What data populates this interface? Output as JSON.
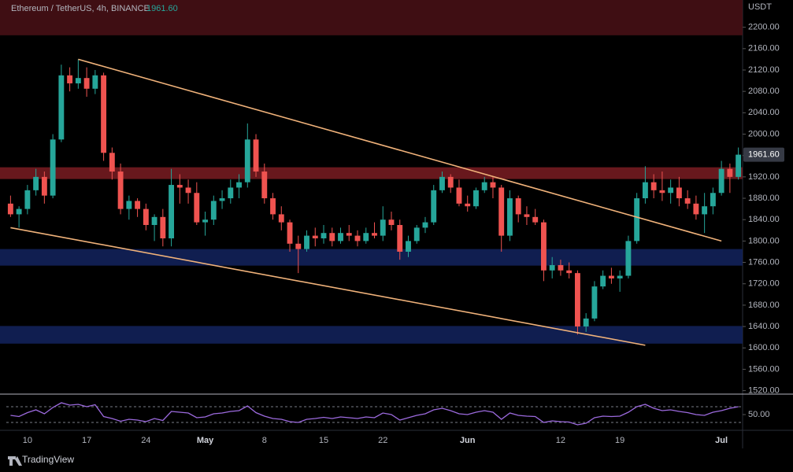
{
  "chart_data": {
    "type": "candlestick",
    "header": "Ethereum / TetherUS, 4h, BINANCE",
    "last_price_label": "1961.60",
    "currency": "USDT",
    "brand": "TradingView",
    "categories": [
      null,
      null,
      "10",
      null,
      null,
      null,
      null,
      null,
      null,
      "17",
      null,
      null,
      null,
      null,
      null,
      null,
      "24",
      null,
      null,
      null,
      null,
      null,
      null,
      "May",
      null,
      null,
      null,
      null,
      null,
      null,
      "8",
      null,
      null,
      null,
      null,
      null,
      null,
      "15",
      null,
      null,
      null,
      null,
      null,
      null,
      "22",
      null,
      null,
      null,
      null,
      null,
      null,
      null,
      null,
      null,
      "Jun",
      null,
      null,
      null,
      null,
      null,
      null,
      null,
      null,
      null,
      null,
      "12",
      null,
      null,
      null,
      null,
      null,
      null,
      "19",
      null,
      null,
      null,
      null,
      null,
      null,
      null,
      null,
      null,
      null,
      null,
      "Jul",
      null,
      null
    ],
    "candles": [
      [
        1870,
        1885,
        1845,
        1850
      ],
      [
        1850,
        1865,
        1825,
        1860
      ],
      [
        1860,
        1905,
        1850,
        1895
      ],
      [
        1895,
        1935,
        1885,
        1920
      ],
      [
        1920,
        1930,
        1870,
        1885
      ],
      [
        1885,
        2000,
        1880,
        1990
      ],
      [
        1990,
        2130,
        1985,
        2110
      ],
      [
        2110,
        2125,
        2080,
        2095
      ],
      [
        2095,
        2140,
        2085,
        2105
      ],
      [
        2105,
        2125,
        2070,
        2085
      ],
      [
        2085,
        2120,
        2075,
        2110
      ],
      [
        2110,
        2115,
        1950,
        1965
      ],
      [
        1965,
        1975,
        1915,
        1930
      ],
      [
        1930,
        1945,
        1850,
        1860
      ],
      [
        1860,
        1885,
        1840,
        1875
      ],
      [
        1875,
        1880,
        1845,
        1860
      ],
      [
        1860,
        1870,
        1820,
        1830
      ],
      [
        1830,
        1850,
        1800,
        1845
      ],
      [
        1845,
        1860,
        1790,
        1805
      ],
      [
        1805,
        1935,
        1790,
        1905
      ],
      [
        1905,
        1925,
        1870,
        1900
      ],
      [
        1900,
        1915,
        1870,
        1890
      ],
      [
        1890,
        1910,
        1830,
        1835
      ],
      [
        1835,
        1855,
        1810,
        1840
      ],
      [
        1840,
        1885,
        1830,
        1875
      ],
      [
        1875,
        1895,
        1860,
        1880
      ],
      [
        1880,
        1915,
        1870,
        1900
      ],
      [
        1900,
        1925,
        1880,
        1910
      ],
      [
        1910,
        2020,
        1900,
        1990
      ],
      [
        1990,
        2000,
        1920,
        1930
      ],
      [
        1930,
        1945,
        1870,
        1880
      ],
      [
        1880,
        1890,
        1840,
        1850
      ],
      [
        1850,
        1865,
        1820,
        1835
      ],
      [
        1835,
        1840,
        1780,
        1795
      ],
      [
        1795,
        1810,
        1740,
        1785
      ],
      [
        1785,
        1820,
        1780,
        1810
      ],
      [
        1810,
        1825,
        1790,
        1805
      ],
      [
        1805,
        1830,
        1795,
        1815
      ],
      [
        1815,
        1825,
        1790,
        1800
      ],
      [
        1800,
        1825,
        1795,
        1815
      ],
      [
        1815,
        1830,
        1800,
        1810
      ],
      [
        1810,
        1820,
        1790,
        1800
      ],
      [
        1800,
        1825,
        1795,
        1815
      ],
      [
        1815,
        1835,
        1805,
        1810
      ],
      [
        1810,
        1865,
        1800,
        1840
      ],
      [
        1840,
        1855,
        1820,
        1830
      ],
      [
        1830,
        1840,
        1765,
        1780
      ],
      [
        1780,
        1810,
        1770,
        1800
      ],
      [
        1800,
        1830,
        1795,
        1825
      ],
      [
        1825,
        1845,
        1815,
        1835
      ],
      [
        1835,
        1905,
        1830,
        1895
      ],
      [
        1895,
        1930,
        1890,
        1920
      ],
      [
        1920,
        1925,
        1890,
        1900
      ],
      [
        1900,
        1915,
        1865,
        1870
      ],
      [
        1870,
        1885,
        1855,
        1865
      ],
      [
        1865,
        1900,
        1860,
        1895
      ],
      [
        1895,
        1920,
        1890,
        1910
      ],
      [
        1910,
        1920,
        1880,
        1900
      ],
      [
        1900,
        1905,
        1780,
        1810
      ],
      [
        1810,
        1895,
        1800,
        1880
      ],
      [
        1880,
        1885,
        1835,
        1850
      ],
      [
        1850,
        1865,
        1830,
        1845
      ],
      [
        1845,
        1860,
        1830,
        1835
      ],
      [
        1835,
        1840,
        1725,
        1745
      ],
      [
        1745,
        1770,
        1730,
        1755
      ],
      [
        1755,
        1765,
        1735,
        1745
      ],
      [
        1745,
        1760,
        1730,
        1740
      ],
      [
        1740,
        1745,
        1625,
        1640
      ],
      [
        1640,
        1665,
        1630,
        1655
      ],
      [
        1655,
        1725,
        1650,
        1715
      ],
      [
        1715,
        1745,
        1710,
        1735
      ],
      [
        1735,
        1750,
        1720,
        1730
      ],
      [
        1730,
        1745,
        1705,
        1735
      ],
      [
        1735,
        1810,
        1730,
        1800
      ],
      [
        1800,
        1890,
        1795,
        1880
      ],
      [
        1880,
        1940,
        1870,
        1910
      ],
      [
        1910,
        1925,
        1880,
        1895
      ],
      [
        1895,
        1930,
        1875,
        1890
      ],
      [
        1890,
        1915,
        1870,
        1900
      ],
      [
        1900,
        1920,
        1865,
        1880
      ],
      [
        1880,
        1895,
        1860,
        1870
      ],
      [
        1870,
        1885,
        1840,
        1850
      ],
      [
        1850,
        1890,
        1815,
        1865
      ],
      [
        1865,
        1900,
        1850,
        1890
      ],
      [
        1890,
        1950,
        1885,
        1935
      ],
      [
        1935,
        1945,
        1890,
        1920
      ],
      [
        1920,
        1975,
        1915,
        1961.6
      ]
    ],
    "up_color": "#26a69a",
    "down_color": "#ef5350",
    "ylim": [
      1515,
      2251
    ],
    "yticks": [
      {
        "value": 2200,
        "label": "2200.00"
      },
      {
        "value": 2160,
        "label": "2160.00"
      },
      {
        "value": 2120,
        "label": "2120.00"
      },
      {
        "value": 2080,
        "label": "2080.00"
      },
      {
        "value": 2040,
        "label": "2040.00"
      },
      {
        "value": 2000,
        "label": "2000.00"
      },
      {
        "value": 1960,
        "label": "1960.00"
      },
      {
        "value": 1920,
        "label": "1920.00"
      },
      {
        "value": 1880,
        "label": "1880.00"
      },
      {
        "value": 1840,
        "label": "1840.00"
      },
      {
        "value": 1800,
        "label": "1800.00"
      },
      {
        "value": 1760,
        "label": "1760.00"
      },
      {
        "value": 1720,
        "label": "1720.00"
      },
      {
        "value": 1680,
        "label": "1680.00"
      },
      {
        "value": 1640,
        "label": "1640.00"
      },
      {
        "value": 1600,
        "label": "1600.00"
      },
      {
        "value": 1560,
        "label": "1560.00"
      },
      {
        "value": 1520,
        "label": "1520.00"
      }
    ],
    "zones": [
      {
        "from": 2185,
        "to": 2251,
        "color": "#4a1116"
      },
      {
        "from": 1916,
        "to": 1938,
        "color": "#7a1c22"
      },
      {
        "from": 1754,
        "to": 1785,
        "color": "#13235e"
      },
      {
        "from": 1608,
        "to": 1641,
        "color": "#13235e"
      }
    ],
    "trendlines": [
      {
        "start": [
          8,
          2140
        ],
        "end": [
          84,
          1800
        ]
      },
      {
        "start": [
          0,
          1825
        ],
        "end": [
          75,
          1605
        ]
      }
    ],
    "trendline_color": "#f0b27a",
    "rsi": [
      48,
      45,
      55,
      62,
      52,
      68,
      80,
      74,
      76,
      70,
      75,
      45,
      40,
      33,
      38,
      36,
      32,
      40,
      35,
      58,
      56,
      54,
      42,
      44,
      52,
      54,
      58,
      60,
      72,
      55,
      46,
      40,
      38,
      32,
      30,
      38,
      40,
      43,
      40,
      44,
      42,
      40,
      44,
      42,
      54,
      50,
      36,
      42,
      48,
      52,
      62,
      66,
      60,
      52,
      50,
      56,
      60,
      56,
      38,
      54,
      48,
      46,
      45,
      30,
      34,
      32,
      31,
      24,
      28,
      42,
      46,
      45,
      46,
      56,
      70,
      76,
      66,
      60,
      62,
      58,
      55,
      50,
      48,
      56,
      60,
      66,
      70
    ],
    "rsi_color": "#9c6ade",
    "rsi_ylim": [
      14,
      98
    ],
    "rsi_yticks": [
      {
        "value": 50,
        "label": "50.00"
      }
    ],
    "rsi_bands": [
      30,
      70
    ]
  }
}
